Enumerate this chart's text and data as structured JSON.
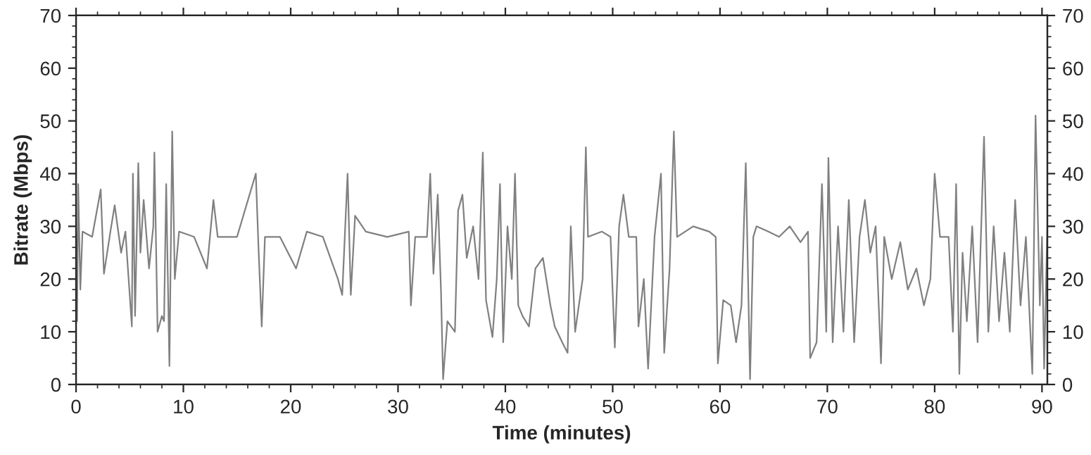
{
  "chart_data": {
    "type": "line",
    "xlabel": "Time (minutes)",
    "ylabel": "Bitrate (Mbps)",
    "xlim": [
      0,
      90.5
    ],
    "xticks": [
      0,
      10,
      20,
      30,
      40,
      50,
      60,
      70,
      80,
      90
    ],
    "ylim": [
      0,
      70
    ],
    "yticks": [
      0,
      10,
      20,
      30,
      40,
      50,
      60,
      70
    ],
    "y2lim": [
      0,
      70
    ],
    "y2ticks": [
      0,
      10,
      20,
      30,
      40,
      50,
      60,
      70
    ],
    "marker": "none",
    "line_style": "solid",
    "series": [
      {
        "color": "#808080",
        "x": [
          0,
          0.1,
          0.2,
          0.4,
          0.6,
          1.5,
          2.3,
          2.6,
          3.2,
          3.6,
          4.2,
          4.6,
          5.2,
          5.3,
          5.5,
          5.8,
          6.0,
          6.3,
          6.8,
          7.2,
          7.3,
          7.6,
          8.0,
          8.2,
          8.4,
          8.7,
          8.96,
          9.2,
          9.6,
          11,
          12.2,
          12.8,
          13.2,
          15,
          16.75,
          17.0,
          17.3,
          17.6,
          19,
          20.5,
          21.5,
          23,
          24.4,
          24.8,
          25.3,
          25.6,
          26,
          27,
          29,
          31.0,
          31.2,
          31.6,
          32.7,
          33.0,
          33.3,
          33.7,
          34.0,
          34.2,
          34.6,
          35.3,
          35.6,
          36.0,
          36.4,
          37.0,
          37.5,
          37.9,
          38.2,
          38.8,
          39.2,
          39.5,
          39.8,
          40.2,
          40.6,
          40.9,
          41.2,
          41.6,
          42.2,
          42.8,
          43.5,
          44.2,
          44.6,
          45.3,
          45.8,
          46.1,
          46.5,
          47.2,
          47.5,
          47.7,
          49,
          49.8,
          50.2,
          50.6,
          51.0,
          51.5,
          52.2,
          52.4,
          52.9,
          53.3,
          53.9,
          54.5,
          54.8,
          55.3,
          55.7,
          56.0,
          57.5,
          59.0,
          59.6,
          59.8,
          60.3,
          61.0,
          61.5,
          62.0,
          62.4,
          62.8,
          63.1,
          63.4,
          64.5,
          65.5,
          66.5,
          67.5,
          68.2,
          68.4,
          69.0,
          69.5,
          69.9,
          70.1,
          70.5,
          71.0,
          71.5,
          72.0,
          72.5,
          73.0,
          73.5,
          74.0,
          74.5,
          75.0,
          75.3,
          76.0,
          76.8,
          77.5,
          78.3,
          79.0,
          79.6,
          80.0,
          80.5,
          81.3,
          81.7,
          82.0,
          82.3,
          82.6,
          83.0,
          83.5,
          84.0,
          84.6,
          85.0,
          85.5,
          86.0,
          86.5,
          87.0,
          87.5,
          88.0,
          88.5,
          89.1,
          89.4,
          89.8,
          90.0,
          90.2,
          90.5
        ],
        "values": [
          29,
          12,
          38,
          18,
          29,
          28,
          37,
          21,
          29,
          34,
          25,
          29,
          11,
          40,
          13,
          42,
          25,
          35,
          22,
          30,
          44,
          10,
          13,
          12,
          38,
          3.5,
          48,
          20,
          29,
          28,
          22,
          35,
          28,
          28,
          40,
          26,
          11,
          28,
          28,
          22,
          29,
          28,
          20,
          17,
          40,
          17,
          32,
          29,
          28,
          29,
          15,
          28,
          28,
          40,
          21,
          36,
          18,
          1,
          12,
          10,
          33,
          36,
          24,
          30,
          20,
          44,
          16,
          9,
          20,
          38,
          8,
          30,
          20,
          40,
          15,
          13,
          11,
          22,
          24,
          15,
          11,
          8,
          6,
          30,
          10,
          20,
          45,
          28,
          29,
          28,
          7,
          30,
          36,
          28,
          28,
          11,
          20,
          3,
          28,
          40,
          6,
          22,
          48,
          28,
          30,
          29,
          28,
          4,
          16,
          15,
          8,
          15,
          42,
          1,
          28,
          30,
          29,
          28,
          30,
          27,
          29,
          5,
          8,
          38,
          10,
          43,
          8,
          30,
          10,
          35,
          8,
          28,
          35,
          25,
          30,
          4,
          28,
          20,
          27,
          18,
          22,
          15,
          20,
          40,
          28,
          28,
          10,
          38,
          2,
          25,
          12,
          30,
          8,
          47,
          10,
          30,
          12,
          25,
          10,
          35,
          15,
          28,
          2,
          51,
          15,
          28,
          3,
          30
        ]
      }
    ]
  }
}
